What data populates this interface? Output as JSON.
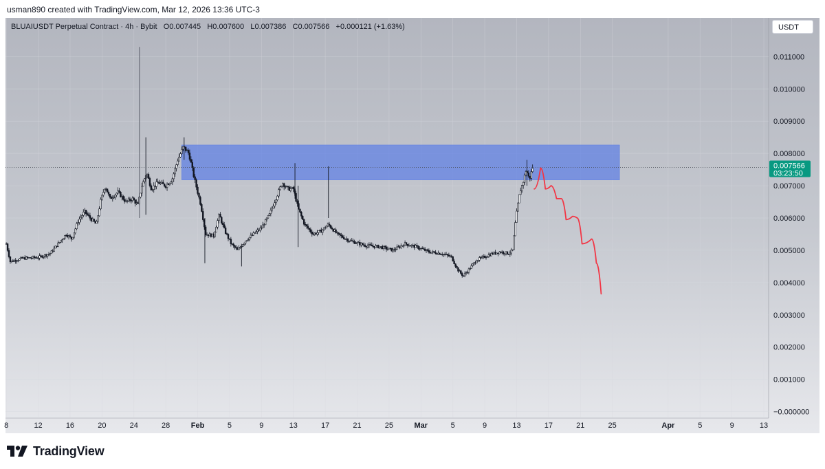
{
  "caption": "usman890 created with TradingView.com, Mar 12, 2026 13:36 UTC-3",
  "legend": {
    "symbol": "BLUAIUSDT Perpetual Contract · 4h · Bybit",
    "open": "O0.007445",
    "high": "H0.007600",
    "low": "L0.007386",
    "close": "C0.007566",
    "change": "+0.000121 (+1.63%)"
  },
  "currency": "USDT",
  "brand": {
    "name": "TradingView",
    "icon": "tradingview-logo-icon"
  },
  "colors": {
    "candles": "#131722",
    "zone": "#5b7ee6",
    "projection": "#f23645",
    "price_badge": "#089981"
  },
  "chart_data": {
    "type": "candlestick",
    "timeframe": "4h",
    "last_price": "0.007566",
    "countdown": "03:23:50",
    "y_ticks": [
      "0.011000",
      "0.010000",
      "0.009000",
      "0.008000",
      "0.007000",
      "0.006000",
      "0.005000",
      "0.004000",
      "0.003000",
      "0.002000",
      "0.001000",
      "−0.000000"
    ],
    "y_tick_values": [
      0.011,
      0.01,
      0.009,
      0.008,
      0.007,
      0.006,
      0.005,
      0.004,
      0.003,
      0.002,
      0.001,
      0.0
    ],
    "ylim": [
      -0.0002,
      0.0122
    ],
    "x_tick_labels": [
      "8",
      "12",
      "16",
      "20",
      "24",
      "28",
      "Feb",
      "5",
      "9",
      "13",
      "17",
      "21",
      "25",
      "Mar",
      "5",
      "9",
      "13",
      "17",
      "21",
      "25",
      "Apr",
      "5",
      "9",
      "13"
    ],
    "x_tick_days": [
      7,
      11,
      15,
      19,
      23,
      27,
      31,
      35,
      39,
      43,
      47,
      51,
      55,
      59,
      63,
      67,
      71,
      75,
      79,
      83,
      90,
      94,
      98,
      102
    ],
    "xlim_days": [
      6.9,
      102.6
    ],
    "price_path": [
      [
        7.0,
        0.0052
      ],
      [
        7.5,
        0.00465
      ],
      [
        9,
        0.00475
      ],
      [
        11,
        0.00478
      ],
      [
        12.5,
        0.0049
      ],
      [
        13.5,
        0.0052
      ],
      [
        14.5,
        0.0055
      ],
      [
        15.2,
        0.00535
      ],
      [
        16,
        0.0059
      ],
      [
        16.8,
        0.0062
      ],
      [
        17.5,
        0.006
      ],
      [
        18.3,
        0.0058
      ],
      [
        18.8,
        0.0065
      ],
      [
        19.4,
        0.007
      ],
      [
        20,
        0.0066
      ],
      [
        21,
        0.0068
      ],
      [
        22,
        0.0065
      ],
      [
        22.8,
        0.0066
      ],
      [
        23.5,
        0.0064
      ],
      [
        24.0,
        0.007
      ],
      [
        24.6,
        0.0074
      ],
      [
        25.2,
        0.0069
      ],
      [
        26,
        0.0071
      ],
      [
        27,
        0.007
      ],
      [
        27.8,
        0.0072
      ],
      [
        28.5,
        0.0078
      ],
      [
        29.2,
        0.0082
      ],
      [
        29.9,
        0.008
      ],
      [
        30.6,
        0.0072
      ],
      [
        31.4,
        0.0064
      ],
      [
        32.0,
        0.0055
      ],
      [
        33,
        0.00545
      ],
      [
        33.7,
        0.0061
      ],
      [
        34.4,
        0.0056
      ],
      [
        35.2,
        0.0052
      ],
      [
        36,
        0.005
      ],
      [
        37,
        0.0053
      ],
      [
        38,
        0.0055
      ],
      [
        39,
        0.0057
      ],
      [
        40,
        0.0061
      ],
      [
        40.8,
        0.0066
      ],
      [
        41.6,
        0.0071
      ],
      [
        42.3,
        0.0069
      ],
      [
        43,
        0.0069
      ],
      [
        43.6,
        0.0063
      ],
      [
        44.4,
        0.0058
      ],
      [
        45.5,
        0.0055
      ],
      [
        46.5,
        0.0056
      ],
      [
        47.4,
        0.0058
      ],
      [
        48.5,
        0.0055
      ],
      [
        50,
        0.0053
      ],
      [
        52,
        0.00515
      ],
      [
        54,
        0.0051
      ],
      [
        55.5,
        0.005
      ],
      [
        57,
        0.0052
      ],
      [
        58.5,
        0.0051
      ],
      [
        60,
        0.00495
      ],
      [
        61.5,
        0.0049
      ],
      [
        62.8,
        0.0048
      ],
      [
        63.6,
        0.0044
      ],
      [
        64.3,
        0.0042
      ],
      [
        65,
        0.0044
      ],
      [
        66,
        0.0047
      ],
      [
        67,
        0.0048
      ],
      [
        68,
        0.0049
      ],
      [
        69,
        0.00495
      ],
      [
        70,
        0.0049
      ],
      [
        70.5,
        0.005
      ],
      [
        70.9,
        0.006
      ],
      [
        71.4,
        0.0068
      ],
      [
        71.8,
        0.0071
      ],
      [
        72.2,
        0.0075
      ],
      [
        72.6,
        0.0072
      ],
      [
        73.0,
        0.00756
      ]
    ],
    "spikes": [
      {
        "day": 23.7,
        "high": 0.0113,
        "low": 0.006
      },
      {
        "day": 24.5,
        "high": 0.0085,
        "low": 0.0061
      },
      {
        "day": 29.3,
        "high": 0.0085,
        "low": 0.0078
      },
      {
        "day": 43.2,
        "high": 0.0077,
        "low": 0.0066
      },
      {
        "day": 43.6,
        "high": 0.007,
        "low": 0.0051
      },
      {
        "day": 47.4,
        "high": 0.0076,
        "low": 0.006
      },
      {
        "day": 31.9,
        "high": 0.006,
        "low": 0.0046
      },
      {
        "day": 36.5,
        "high": 0.0052,
        "low": 0.0045
      },
      {
        "day": 72.3,
        "high": 0.0078,
        "low": 0.007
      }
    ],
    "zone": {
      "start_day": 29.0,
      "end_day": 83.9,
      "top": 0.00826,
      "bottom": 0.00718
    },
    "projection": [
      [
        73.2,
        0.0069
      ],
      [
        74.0,
        0.00755
      ],
      [
        74.6,
        0.0069
      ],
      [
        75.3,
        0.007
      ],
      [
        76.0,
        0.0066
      ],
      [
        76.6,
        0.0066
      ],
      [
        77.2,
        0.00595
      ],
      [
        78.0,
        0.00605
      ],
      [
        78.6,
        0.006
      ],
      [
        79.2,
        0.0052
      ],
      [
        80.4,
        0.00535
      ],
      [
        81.0,
        0.0046
      ],
      [
        81.6,
        0.00365
      ]
    ]
  }
}
